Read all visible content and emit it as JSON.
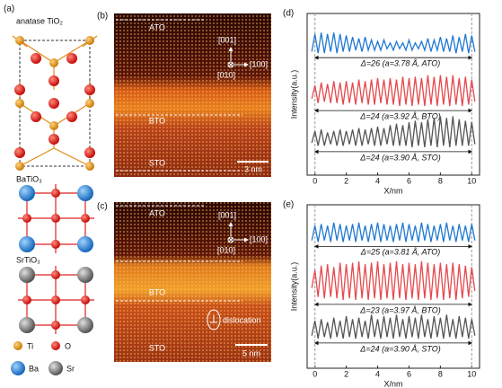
{
  "panels": {
    "a": {
      "label": "(a)",
      "structures": [
        "anatase TiO₂",
        "BaTiO₃",
        "SrTiO₃"
      ],
      "legend": [
        "Ti",
        "O",
        "Ba",
        "Sr"
      ]
    },
    "b": {
      "label": "(b)",
      "layers": [
        "ATO",
        "BTO",
        "STO"
      ],
      "directions": [
        "[001]",
        "[010]",
        "[100]"
      ],
      "scale_bar": "3 nm"
    },
    "c": {
      "label": "(c)",
      "layers": [
        "ATO",
        "BTO",
        "STO"
      ],
      "directions": [
        "[001]",
        "[010]",
        "[100]"
      ],
      "scale_bar": "5 nm",
      "annotation": "dislocation"
    }
  },
  "chart_data": [
    {
      "type": "line",
      "panel_label": "(d)",
      "xlabel": "X/nm",
      "ylabel": "Intensity(a.u.)",
      "xlim": [
        -0.5,
        10.5
      ],
      "xticks": [
        0,
        2,
        4,
        6,
        8,
        10
      ],
      "ylim": [
        -1,
        10
      ],
      "x": [
        -0.2,
        0,
        0.2,
        0.4,
        0.6,
        0.8,
        1,
        1.2,
        1.4,
        1.6,
        1.8,
        2,
        2.2,
        2.4,
        2.6,
        2.8,
        3,
        3.2,
        3.4,
        3.6,
        3.8,
        4,
        4.2,
        4.4,
        4.6,
        4.8,
        5,
        5.2,
        5.4,
        5.6,
        5.8,
        6,
        6.2,
        6.4,
        6.6,
        6.8,
        7,
        7.2,
        7.4,
        7.6,
        7.8,
        8,
        8.2,
        8.4,
        8.6,
        8.8,
        9,
        9.2,
        9.4,
        9.6,
        9.8,
        10,
        10.2
      ],
      "series": [
        {
          "color": "#1f78d1",
          "annotation": "Δ=26 (a=3.78 Å, ATO)",
          "values": [
            7.4,
            8.6,
            7.3,
            8.7,
            7.3,
            8.6,
            7.4,
            8.7,
            7.3,
            8.6,
            7.4,
            8.5,
            7.4,
            8.4,
            7.5,
            8.3,
            7.4,
            8.4,
            7.5,
            8.2,
            7.5,
            8.1,
            7.5,
            8.2,
            7.6,
            8.0,
            7.5,
            8.1,
            7.6,
            8.0,
            7.5,
            8.2,
            7.5,
            8.0,
            7.6,
            8.1,
            7.5,
            8.3,
            7.4,
            8.2,
            7.5,
            8.4,
            7.4,
            8.3,
            7.4,
            8.5,
            7.3,
            8.4,
            7.4,
            8.6,
            7.3,
            8.5,
            7.4
          ]
        },
        {
          "color": "#e5484d",
          "annotation": "Δ=24 (a=3.92 Å, BTO)",
          "values": [
            4.2,
            5.1,
            3.9,
            5.3,
            4.0,
            5.2,
            3.9,
            5.4,
            3.9,
            5.3,
            3.8,
            5.4,
            3.9,
            5.3,
            3.8,
            5.5,
            3.9,
            5.4,
            3.8,
            5.5,
            3.8,
            5.6,
            3.9,
            5.5,
            3.8,
            5.6,
            3.8,
            5.5,
            3.7,
            5.7,
            3.8,
            5.6,
            3.7,
            5.7,
            3.8,
            5.6,
            3.7,
            5.8,
            3.8,
            5.7,
            3.7,
            5.8,
            3.8,
            5.7,
            3.7,
            5.8,
            3.8,
            5.6,
            3.7,
            5.7,
            3.8,
            5.5,
            4.0
          ]
        },
        {
          "color": "#555555",
          "annotation": "Δ=24 (a=3.90 Å, STO)",
          "values": [
            1.2,
            2.0,
            1.0,
            2.1,
            1.0,
            1.9,
            1.1,
            2.0,
            1.0,
            2.1,
            1.0,
            2.0,
            1.1,
            2.1,
            1.0,
            2.2,
            1.0,
            2.1,
            1.1,
            2.2,
            1.0,
            2.3,
            1.0,
            2.2,
            1.1,
            2.4,
            1.0,
            2.5,
            1.0,
            2.4,
            1.0,
            2.6,
            0.9,
            2.7,
            1.0,
            2.6,
            0.9,
            2.8,
            1.0,
            2.9,
            0.9,
            3.0,
            1.0,
            2.9,
            0.9,
            3.0,
            1.0,
            2.8,
            1.0,
            2.7,
            1.0,
            2.6,
            1.1
          ]
        }
      ]
    },
    {
      "type": "line",
      "panel_label": "(e)",
      "xlabel": "X/nm",
      "ylabel": "Intensity(a.u.)",
      "xlim": [
        -0.5,
        10.5
      ],
      "xticks": [
        0,
        2,
        4,
        6,
        8,
        10
      ],
      "ylim": [
        -1,
        10
      ],
      "x": [
        -0.2,
        0,
        0.2,
        0.4,
        0.6,
        0.8,
        1,
        1.2,
        1.4,
        1.6,
        1.8,
        2,
        2.2,
        2.4,
        2.6,
        2.8,
        3,
        3.2,
        3.4,
        3.6,
        3.8,
        4,
        4.2,
        4.4,
        4.6,
        4.8,
        5,
        5.2,
        5.4,
        5.6,
        5.8,
        6,
        6.2,
        6.4,
        6.6,
        6.8,
        7,
        7.2,
        7.4,
        7.6,
        7.8,
        8,
        8.2,
        8.4,
        8.6,
        8.8,
        9,
        9.2,
        9.4,
        9.6,
        9.8,
        10,
        10.2
      ],
      "series": [
        {
          "color": "#1f78d1",
          "annotation": "Δ=25 (a=3.81 Å, ATO)",
          "values": [
            7.6,
            8.6,
            7.5,
            8.7,
            7.6,
            8.6,
            7.5,
            8.8,
            7.6,
            8.7,
            7.5,
            8.6,
            7.6,
            8.7,
            7.5,
            8.8,
            7.6,
            8.6,
            7.5,
            8.7,
            7.6,
            8.8,
            7.5,
            8.7,
            7.6,
            8.6,
            7.5,
            8.7,
            7.6,
            8.8,
            7.5,
            8.7,
            7.6,
            8.6,
            7.5,
            8.8,
            7.6,
            8.7,
            7.5,
            8.6,
            7.6,
            8.7,
            7.5,
            8.8,
            7.6,
            8.6,
            7.5,
            8.7,
            7.6,
            8.6,
            7.5,
            8.7,
            7.6
          ]
        },
        {
          "color": "#e5484d",
          "annotation": "Δ=23 (a=3.97 Å, BTO)",
          "values": [
            4.4,
            5.6,
            3.8,
            5.9,
            3.7,
            6.0,
            3.8,
            5.8,
            3.7,
            6.1,
            3.6,
            6.0,
            3.7,
            6.1,
            3.6,
            6.2,
            3.7,
            6.0,
            3.6,
            6.1,
            3.7,
            6.2,
            3.6,
            6.0,
            3.7,
            6.1,
            3.6,
            6.2,
            3.7,
            6.0,
            3.6,
            6.1,
            3.7,
            6.0,
            3.6,
            6.2,
            3.7,
            6.1,
            3.6,
            6.0,
            3.7,
            6.1,
            3.6,
            6.0,
            3.7,
            6.1,
            3.6,
            6.0,
            3.7,
            5.9,
            3.8,
            5.8,
            4.2
          ]
        },
        {
          "color": "#555555",
          "annotation": "Δ=24 (a=3.90 Å, STO)",
          "values": [
            1.2,
            2.2,
            1.0,
            2.3,
            1.1,
            2.1,
            1.0,
            2.4,
            1.1,
            2.2,
            1.0,
            2.5,
            1.1,
            2.3,
            1.0,
            2.4,
            1.1,
            2.2,
            1.0,
            2.6,
            1.1,
            2.3,
            1.0,
            2.5,
            1.1,
            2.4,
            1.0,
            2.6,
            1.1,
            2.3,
            1.0,
            2.5,
            1.1,
            2.4,
            1.0,
            2.6,
            1.1,
            2.3,
            1.0,
            2.5,
            1.1,
            2.4,
            1.0,
            2.6,
            1.1,
            2.3,
            1.0,
            2.5,
            1.1,
            2.4,
            1.0,
            2.3,
            1.2
          ]
        }
      ]
    }
  ]
}
